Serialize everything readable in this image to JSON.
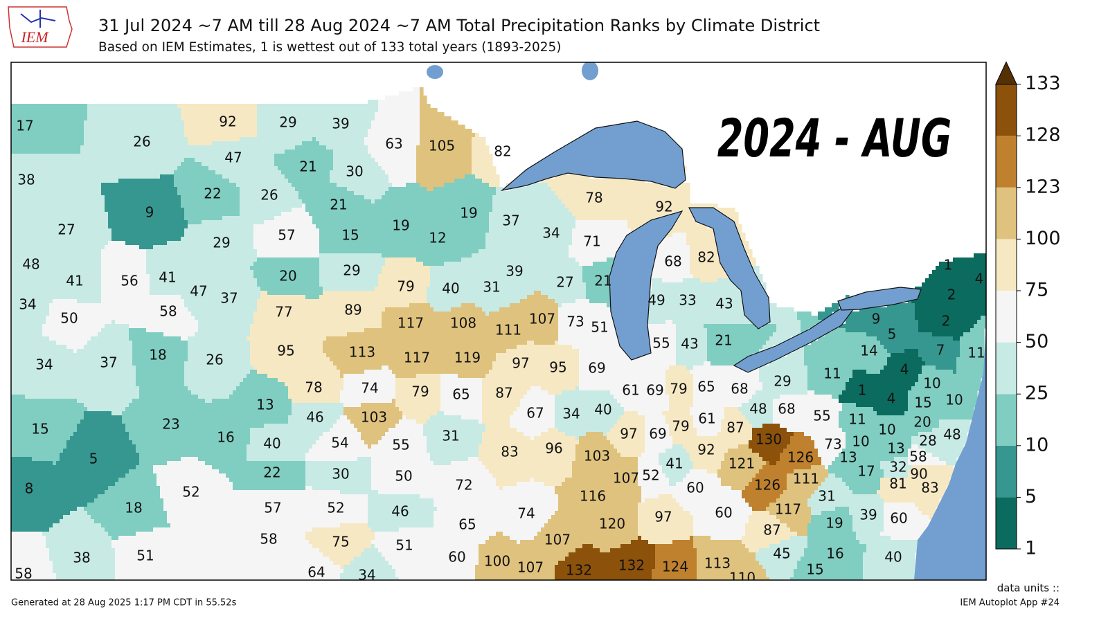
{
  "logo": "IEM",
  "title": "31 Jul 2024 ~7 AM till 28 Aug 2024 ~7 AM Total Precipitation Ranks by Climate District",
  "subtitle": "Based on IEM Estimates, 1 is wettest out of 133 total years (1893-2025)",
  "stamp": "2024 - AUG",
  "colorbar": {
    "levels": [
      1,
      5,
      10,
      25,
      50,
      75,
      100,
      123,
      128,
      133
    ],
    "colors": [
      "#0b6b5f",
      "#35978f",
      "#80cdc1",
      "#c7eae5",
      "#f5f5f5",
      "#f6e8c3",
      "#dfc27d",
      "#bf812d",
      "#8c510a"
    ],
    "over_color": "#543005",
    "units_label": "data units ::"
  },
  "districts": [
    17,
    26,
    38,
    9,
    27,
    92,
    29,
    39,
    47,
    21,
    30,
    22,
    26,
    21,
    63,
    105,
    82,
    29,
    57,
    15,
    19,
    12,
    19,
    37,
    34,
    71,
    78,
    92,
    48,
    41,
    56,
    41,
    34,
    50,
    58,
    34,
    37,
    18,
    47,
    37,
    20,
    29,
    77,
    89,
    79,
    40,
    31,
    39,
    27,
    21,
    68,
    82,
    49,
    33,
    43,
    117,
    108,
    111,
    107,
    73,
    51,
    26,
    95,
    113,
    117,
    119,
    97,
    95,
    69,
    55,
    43,
    21,
    78,
    74,
    79,
    65,
    87,
    13,
    46,
    103,
    61,
    69,
    79,
    65,
    68,
    29,
    48,
    68,
    15,
    23,
    16,
    5,
    8,
    18,
    52,
    40,
    54,
    55,
    22,
    30,
    50,
    57,
    52,
    46,
    31,
    83,
    67,
    34,
    40,
    97,
    69,
    79,
    61,
    87,
    92,
    130,
    126,
    121,
    111,
    126,
    96,
    103,
    107,
    52,
    41,
    116,
    60,
    60,
    117,
    87,
    31,
    19,
    39,
    60,
    72,
    65,
    74,
    120,
    97,
    107,
    55,
    11,
    1,
    4,
    4,
    10,
    15,
    10,
    11,
    20,
    10,
    48,
    28,
    73,
    10,
    13,
    13,
    58,
    32,
    90,
    17,
    81,
    83,
    9,
    5,
    14,
    7,
    11,
    1,
    4,
    2,
    2,
    58,
    75,
    51,
    38,
    51,
    58,
    64,
    34,
    60,
    100,
    107,
    132,
    132,
    124,
    113,
    110,
    45,
    16,
    15,
    40
  ],
  "footer_left": "Generated at 28 Aug 2025 1:17 PM CDT in 55.52s",
  "footer_right": "IEM Autoplot App #24"
}
